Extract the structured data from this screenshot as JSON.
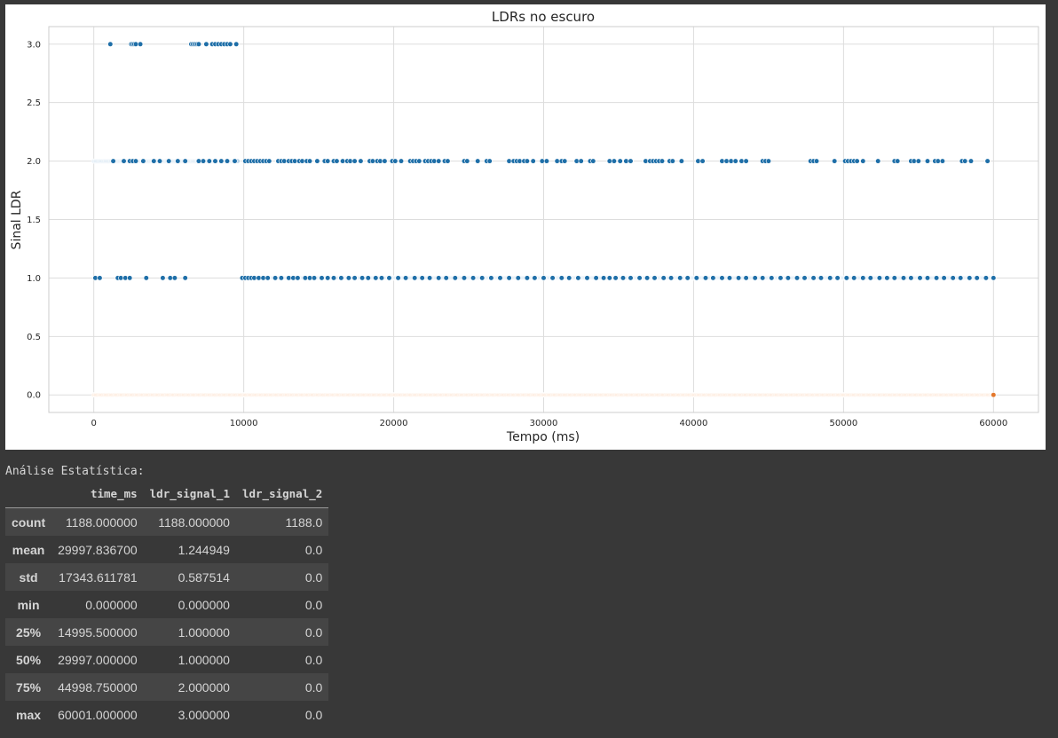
{
  "chart_data": {
    "type": "scatter",
    "title": "LDRs no escuro",
    "xlabel": "Tempo (ms)",
    "ylabel": "Sinal LDR",
    "xlim": [
      -3000,
      63000
    ],
    "ylim": [
      -0.15,
      3.15
    ],
    "xticks": [
      0,
      10000,
      20000,
      30000,
      40000,
      50000,
      60000
    ],
    "yticks": [
      0.0,
      0.5,
      1.0,
      1.5,
      2.0,
      2.5,
      3.0
    ],
    "grid": true,
    "colors": {
      "ldr_signal_1_dark": "#1f6fa8",
      "ldr_signal_1_light": "#b9d3e8",
      "ldr_signal_2_light": "#fbd3b4",
      "ldr_signal_2_dark": "#e3782c",
      "grid": "#dddddd"
    },
    "series": [
      {
        "values_note": "",
        "level": 3.0,
        "x": [
          1100,
          2500,
          2600,
          2700,
          2800,
          3100,
          6500,
          6600,
          6700,
          6800,
          6900,
          7000,
          7500,
          7900,
          8100,
          8300,
          8500,
          8700,
          8900,
          9100,
          9500
        ]
      },
      {
        "level": 2.0,
        "x_dense_range": [
          0,
          9600
        ],
        "x": [
          1300,
          2000,
          2400,
          2600,
          2800,
          3300,
          4000,
          4400,
          5000,
          5600,
          6100,
          7000,
          7300,
          7700,
          8100,
          8500,
          8900,
          9400,
          10100,
          10300,
          10500,
          10700,
          10900,
          11100,
          11300,
          11500,
          11700,
          12300,
          12500,
          12700,
          13000,
          13200,
          13400,
          13700,
          13900,
          14200,
          14400,
          14900,
          15400,
          15600,
          16000,
          16200,
          16600,
          16900,
          17100,
          17400,
          17800,
          18400,
          18600,
          18900,
          19100,
          19400,
          19900,
          20100,
          20500,
          21100,
          21300,
          21500,
          21700,
          22100,
          22300,
          22500,
          22700,
          23000,
          23400,
          23600,
          24700,
          24900,
          25600,
          26200,
          26400,
          27700,
          28000,
          28200,
          28400,
          28700,
          28900,
          29300,
          29900,
          30200,
          30900,
          31200,
          31400,
          32200,
          32500,
          33100,
          33300,
          34400,
          34700,
          35100,
          35500,
          35800,
          36800,
          37100,
          37300,
          37500,
          37700,
          37900,
          38400,
          38600,
          39200,
          40300,
          40600,
          41900,
          42200,
          42500,
          42800,
          43200,
          43500,
          44600,
          44800,
          45000,
          47800,
          48000,
          48200,
          49400,
          50100,
          50300,
          50500,
          50700,
          50900,
          51300,
          52300,
          53400,
          53600,
          54500,
          54700,
          55000,
          55600,
          56100,
          56300,
          56600,
          57900,
          58100,
          58500,
          59600
        ]
      },
      {
        "level": 1.0,
        "x_dense_range": [
          9900,
          60000
        ],
        "x": [
          100,
          400,
          1600,
          1800,
          2100,
          2400,
          3500,
          4600,
          5100,
          5400,
          6100,
          9900,
          10100,
          10300,
          10500,
          10700,
          11000,
          11300,
          11600,
          12100,
          12500,
          13000,
          13300,
          13600,
          14100,
          14400,
          14700,
          15200,
          15600,
          16000,
          16500,
          17000,
          17400,
          17900,
          18300,
          18800,
          19200,
          19700,
          20300,
          20800,
          21400,
          21900,
          22400,
          23000,
          23500,
          24100,
          24700,
          25300,
          25900,
          26500,
          27100,
          27700,
          28300,
          28900,
          29400,
          30000,
          30600,
          31200,
          31700,
          32300,
          32900,
          33500,
          34000,
          34400,
          34800,
          35300,
          35800,
          36400,
          36900,
          37400,
          38000,
          38500,
          39100,
          39600,
          40200,
          40800,
          41300,
          41900,
          42400,
          43000,
          43500,
          44100,
          44600,
          45200,
          45800,
          46300,
          46900,
          47400,
          48000,
          48500,
          49100,
          49600,
          50200,
          50700,
          51300,
          51800,
          52400,
          52900,
          53400,
          54000,
          54500,
          55100,
          55600,
          56200,
          56700,
          57300,
          57800,
          58400,
          58900,
          59500,
          60000
        ]
      },
      {
        "level": 0.0,
        "x_dense_range": [
          0,
          60000
        ],
        "x": [
          60000
        ]
      }
    ]
  },
  "stats": {
    "heading": "Análise Estatística:",
    "columns": [
      "time_ms",
      "ldr_signal_1",
      "ldr_signal_2"
    ],
    "rows": [
      {
        "label": "count",
        "values": [
          "1188.000000",
          "1188.000000",
          "1188.0"
        ]
      },
      {
        "label": "mean",
        "values": [
          "29997.836700",
          "1.244949",
          "0.0"
        ]
      },
      {
        "label": "std",
        "values": [
          "17343.611781",
          "0.587514",
          "0.0"
        ]
      },
      {
        "label": "min",
        "values": [
          "0.000000",
          "0.000000",
          "0.0"
        ]
      },
      {
        "label": "25%",
        "values": [
          "14995.500000",
          "1.000000",
          "0.0"
        ]
      },
      {
        "label": "50%",
        "values": [
          "29997.000000",
          "1.000000",
          "0.0"
        ]
      },
      {
        "label": "75%",
        "values": [
          "44998.750000",
          "2.000000",
          "0.0"
        ]
      },
      {
        "label": "max",
        "values": [
          "60001.000000",
          "3.000000",
          "0.0"
        ]
      }
    ]
  }
}
